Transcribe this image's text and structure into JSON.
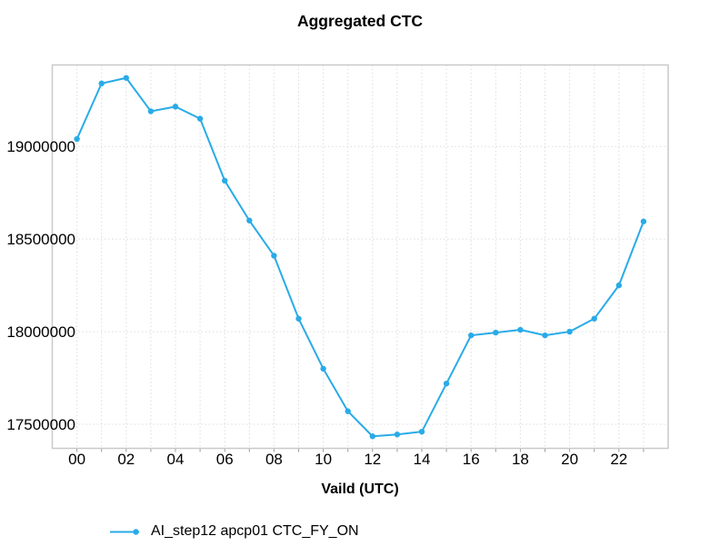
{
  "title": "Aggregated CTC",
  "chart_data": {
    "type": "line",
    "title": "Aggregated CTC",
    "xlabel": "Vaild (UTC)",
    "ylabel": "",
    "x": [
      0,
      1,
      2,
      3,
      4,
      5,
      6,
      7,
      8,
      9,
      10,
      11,
      12,
      13,
      14,
      15,
      16,
      17,
      18,
      19,
      20,
      21,
      22,
      23
    ],
    "series": [
      {
        "name": "AI_step12 apcp01 CTC_FY_ON",
        "color": "#29ABE8",
        "values": [
          19040000,
          19340000,
          19370000,
          19190000,
          19215000,
          19150000,
          18815000,
          18600000,
          18410000,
          18070000,
          17800000,
          17570000,
          17435000,
          17445000,
          17460000,
          17720000,
          17980000,
          17995000,
          18010000,
          17980000,
          18000000,
          18070000,
          18250000,
          18595000
        ]
      }
    ],
    "xlim": [
      -1,
      24
    ],
    "ylim": [
      17370000,
      19440000
    ],
    "xticks": [
      0,
      2,
      4,
      6,
      8,
      10,
      12,
      14,
      16,
      18,
      20,
      22
    ],
    "xtick_labels": [
      "00",
      "02",
      "04",
      "06",
      "08",
      "10",
      "12",
      "14",
      "16",
      "18",
      "20",
      "22"
    ],
    "yticks": [
      17500000,
      18000000,
      18500000,
      19000000
    ],
    "ytick_labels": [
      "17500000",
      "18000000",
      "18500000",
      "19000000"
    ],
    "grid": "dotted, every hour vertical + every 500000 horizontal",
    "legend_position": "bottom-left",
    "marker": "filled-circle"
  }
}
